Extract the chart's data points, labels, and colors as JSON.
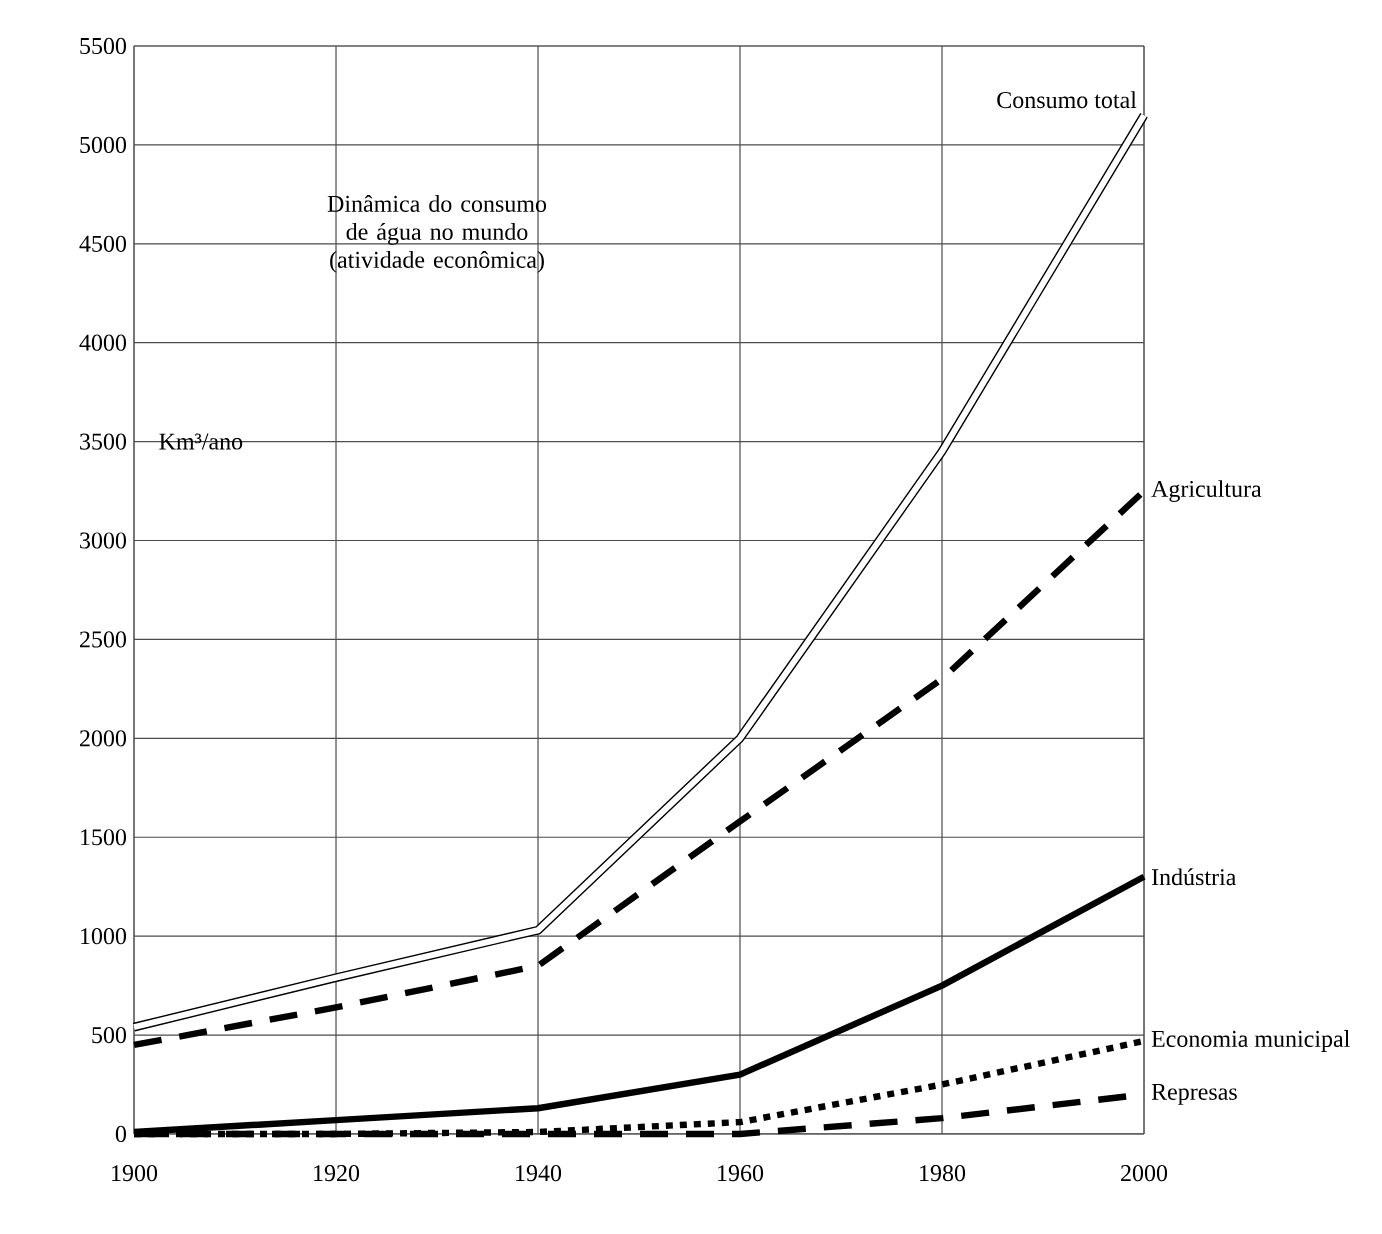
{
  "chart_data": {
    "type": "line",
    "title": "Dinâmica do consumo de água no mundo (atividade econômica)",
    "ylabel": "Km³/ano",
    "x": [
      1900,
      1920,
      1940,
      1960,
      1980,
      2000
    ],
    "series": [
      {
        "name": "Consumo total",
        "color": "#ffffff",
        "line_style": "solid",
        "values": [
          540,
          790,
          1030,
          2000,
          3450,
          5150
        ]
      },
      {
        "name": "Agricultura",
        "color": "#000000",
        "line_style": "dashed",
        "values": [
          450,
          640,
          850,
          1580,
          2300,
          3250
        ]
      },
      {
        "name": "Indústria",
        "color": "#000000",
        "line_style": "solid",
        "values": [
          10,
          70,
          130,
          300,
          750,
          1300
        ]
      },
      {
        "name": "Economia municipal",
        "color": "#000000",
        "line_style": "dotted",
        "values": [
          0,
          0,
          10,
          60,
          250,
          470
        ]
      },
      {
        "name": "Represas",
        "color": "#000000",
        "line_style": "dashed",
        "values": [
          0,
          0,
          0,
          0,
          80,
          200
        ]
      }
    ],
    "xlim": [
      1900,
      2000
    ],
    "ylim": [
      0,
      5500
    ],
    "xticks": [
      1900,
      1920,
      1940,
      1960,
      1980,
      2000
    ],
    "yticks": [
      0,
      500,
      1000,
      1500,
      2000,
      2500,
      3000,
      3500,
      4000,
      4500,
      5000,
      5500
    ],
    "grid": true,
    "marker": "none"
  }
}
